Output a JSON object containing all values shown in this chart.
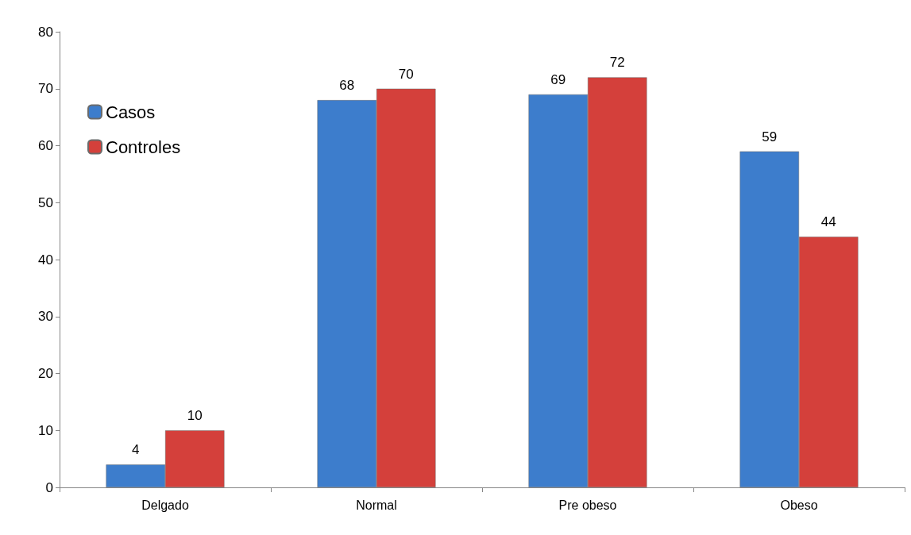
{
  "chart_data": {
    "type": "bar",
    "categories": [
      "Delgado",
      "Normal",
      "Pre obeso",
      "Obeso"
    ],
    "series": [
      {
        "name": "Casos",
        "color": "#3d7dcc",
        "values": [
          4,
          68,
          69,
          59
        ]
      },
      {
        "name": "Controles",
        "color": "#d4403b",
        "values": [
          10,
          70,
          72,
          44
        ]
      }
    ],
    "ylim": [
      0,
      80
    ],
    "yticks": [
      0,
      10,
      20,
      30,
      40,
      50,
      60,
      70,
      80
    ],
    "grid": false,
    "legend": "top left",
    "data_labels": true
  }
}
